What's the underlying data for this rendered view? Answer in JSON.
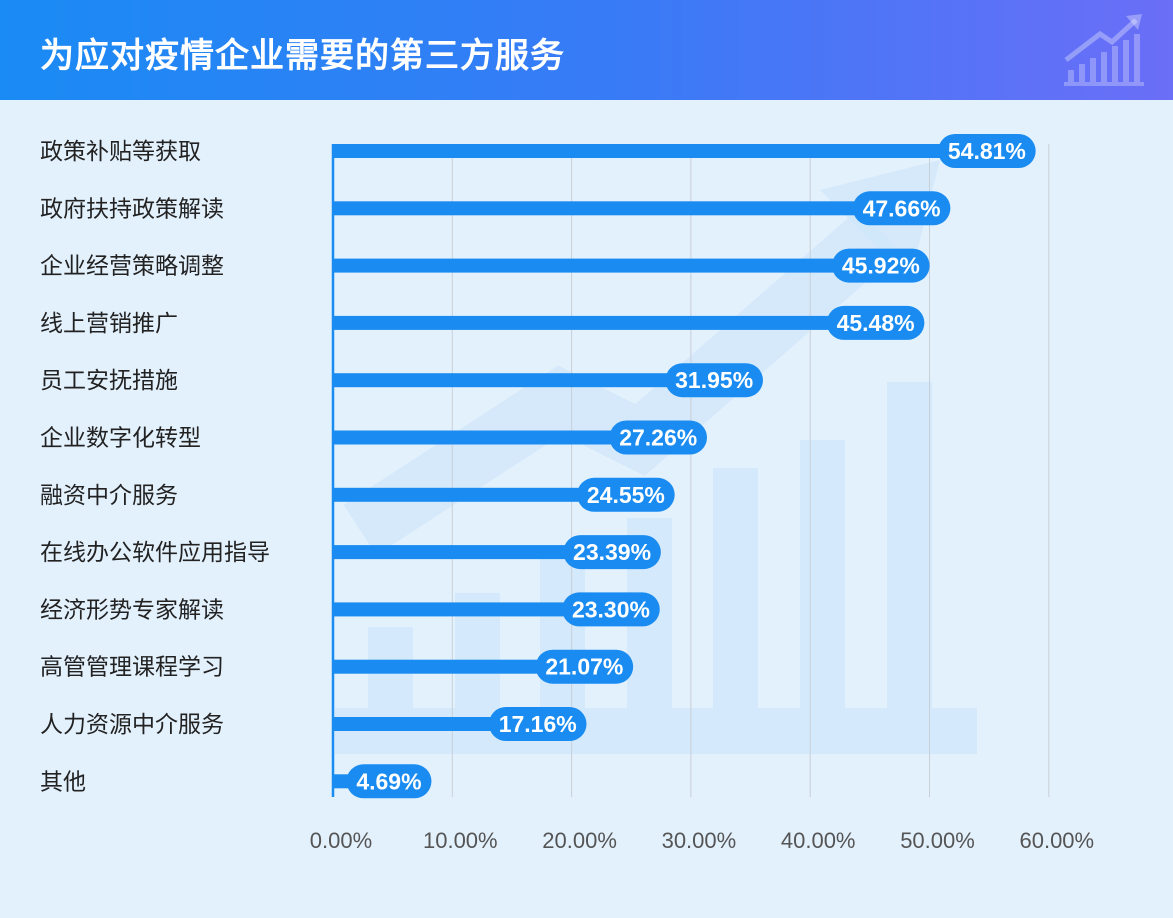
{
  "header": {
    "title": "为应对疫情企业需要的第三方服务",
    "icon": "growth-chart-icon"
  },
  "colors": {
    "bar": "#1a8cf1",
    "header_start": "#1a8bf4",
    "header_end": "#6b6ef7",
    "background": "#e3f1fd",
    "watermark": "#cfe5fa"
  },
  "chart_data": {
    "type": "bar",
    "orientation": "horizontal",
    "title": "为应对疫情企业需要的第三方服务",
    "xlabel": "",
    "ylabel": "",
    "xlim": [
      0,
      60
    ],
    "ticks": [
      0,
      10,
      20,
      30,
      40,
      50,
      60
    ],
    "tick_labels": [
      "0.00%",
      "10.00%",
      "20.00%",
      "30.00%",
      "40.00%",
      "50.00%",
      "60.00%"
    ],
    "grid": true,
    "categories": [
      "政策补贴等获取",
      "政府扶持政策解读",
      "企业经营策略调整",
      "线上营销推广",
      "员工安抚措施",
      "企业数字化转型",
      "融资中介服务",
      "在线办公软件应用指导",
      "经济形势专家解读",
      "高管管理课程学习",
      "人力资源中介服务",
      "其他"
    ],
    "values": [
      54.81,
      47.66,
      45.92,
      45.48,
      31.95,
      27.26,
      24.55,
      23.39,
      23.3,
      21.07,
      17.16,
      4.69
    ],
    "value_labels": [
      "54.81%",
      "47.66%",
      "45.92%",
      "45.48%",
      "31.95%",
      "27.26%",
      "24.55%",
      "23.39%",
      "23.30%",
      "21.07%",
      "17.16%",
      "4.69%"
    ]
  }
}
